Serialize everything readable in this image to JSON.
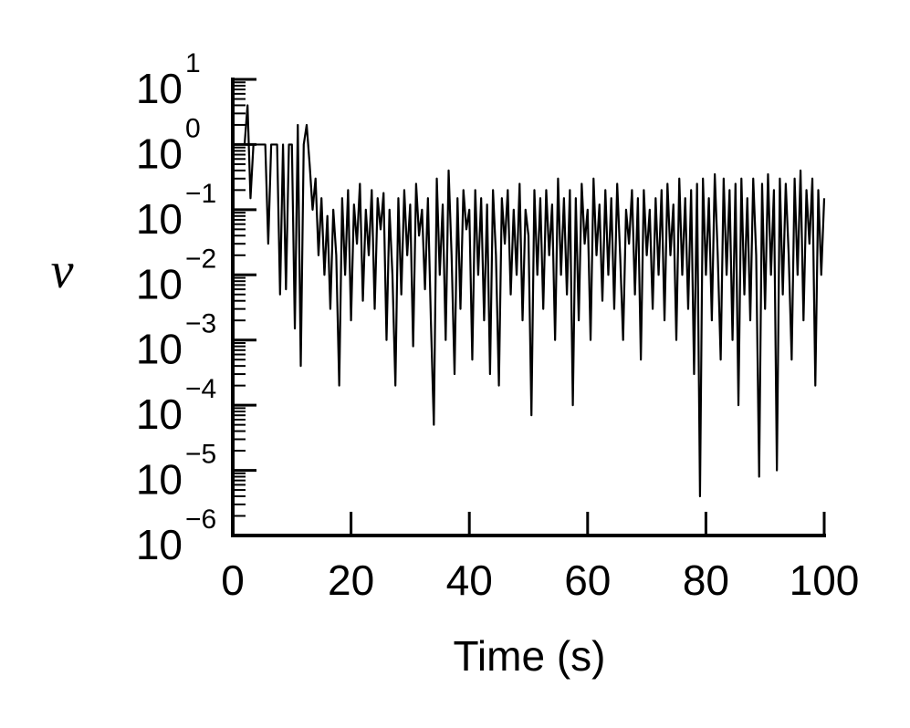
{
  "chart_data": {
    "type": "line",
    "xlabel": "Time (s)",
    "ylabel": "ν",
    "log_y": true,
    "color": "#000000",
    "xlim": [
      0,
      100
    ],
    "xticks": [
      0,
      20,
      40,
      60,
      80,
      100
    ],
    "ylim": [
      1e-06,
      10
    ],
    "yticks": [
      {
        "value": 1e-06,
        "label": "10",
        "exponent": "−6"
      },
      {
        "value": 1e-05,
        "label": "10",
        "exponent": "−5"
      },
      {
        "value": 0.0001,
        "label": "10",
        "exponent": "−4"
      },
      {
        "value": 0.001,
        "label": "10",
        "exponent": "−3"
      },
      {
        "value": 0.01,
        "label": "10",
        "exponent": "−2"
      },
      {
        "value": 0.1,
        "label": "10",
        "exponent": "−1"
      },
      {
        "value": 1,
        "label": "10",
        "exponent": "0"
      },
      {
        "value": 10,
        "label": "10",
        "exponent": "1"
      }
    ],
    "yminorticks": [
      2e-06,
      3e-06,
      4e-06,
      5e-06,
      6e-06,
      7e-06,
      8e-06,
      9e-06,
      2e-05,
      3e-05,
      4e-05,
      5e-05,
      6e-05,
      7e-05,
      8e-05,
      9e-05,
      0.0002,
      0.0003,
      0.0004,
      0.0005,
      0.0006,
      0.0007,
      0.0008,
      0.0009,
      0.002,
      0.003,
      0.004,
      0.005,
      0.006,
      0.007,
      0.008,
      0.009,
      0.02,
      0.03,
      0.04,
      0.05,
      0.06,
      0.07,
      0.08,
      0.09,
      0.2,
      0.3,
      0.4,
      0.5,
      0.6,
      0.7,
      0.8,
      0.9,
      2,
      3,
      4,
      5,
      6,
      7,
      8,
      9
    ],
    "x": [
      0,
      0.5,
      1,
      1.5,
      2,
      2.5,
      3,
      3.5,
      4,
      4.5,
      5,
      5.5,
      6,
      6.5,
      7,
      7.5,
      8,
      8.5,
      9,
      9.5,
      10,
      10.5,
      11,
      11.5,
      12,
      12.5,
      13,
      13.5,
      14,
      14.5,
      15,
      15.5,
      16,
      16.5,
      17,
      17.5,
      18,
      18.5,
      19,
      19.5,
      20,
      20.5,
      21,
      21.5,
      22,
      22.5,
      23,
      23.5,
      24,
      24.5,
      25,
      25.5,
      26,
      26.5,
      27,
      27.5,
      28,
      28.5,
      29,
      29.5,
      30,
      30.5,
      31,
      31.5,
      32,
      32.5,
      33,
      33.5,
      34,
      34.5,
      35,
      35.5,
      36,
      36.5,
      37,
      37.5,
      38,
      38.5,
      39,
      39.5,
      40,
      40.5,
      41,
      41.5,
      42,
      42.5,
      43,
      43.5,
      44,
      44.5,
      45,
      45.5,
      46,
      46.5,
      47,
      47.5,
      48,
      48.5,
      49,
      49.5,
      50,
      50.5,
      51,
      51.5,
      52,
      52.5,
      53,
      53.5,
      54,
      54.5,
      55,
      55.5,
      56,
      56.5,
      57,
      57.5,
      58,
      58.5,
      59,
      59.5,
      60,
      60.5,
      61,
      61.5,
      62,
      62.5,
      63,
      63.5,
      64,
      64.5,
      65,
      65.5,
      66,
      66.5,
      67,
      67.5,
      68,
      68.5,
      69,
      69.5,
      70,
      70.5,
      71,
      71.5,
      72,
      72.5,
      73,
      73.5,
      74,
      74.5,
      75,
      75.5,
      76,
      76.5,
      77,
      77.5,
      78,
      78.5,
      79,
      79.5,
      80,
      80.5,
      81,
      81.5,
      82,
      82.5,
      83,
      83.5,
      84,
      84.5,
      85,
      85.5,
      86,
      86.5,
      87,
      87.5,
      88,
      88.5,
      89,
      89.5,
      90,
      90.5,
      91,
      91.5,
      92,
      92.5,
      93,
      93.5,
      94,
      94.5,
      95,
      95.5,
      96,
      96.5,
      97,
      97.5,
      98,
      98.5,
      99,
      99.5,
      100
    ],
    "values": [
      1,
      1,
      1,
      1,
      1,
      4,
      0.15,
      1,
      1,
      1,
      1,
      1,
      0.03,
      1,
      1,
      1,
      0.005,
      1,
      0.006,
      1,
      1,
      0.0015,
      2,
      0.0004,
      1,
      2,
      0.5,
      0.1,
      0.3,
      0.02,
      0.15,
      0.01,
      0.08,
      0.003,
      0.1,
      0.02,
      0.0002,
      0.15,
      0.01,
      0.2,
      0.002,
      0.12,
      0.03,
      0.25,
      0.004,
      0.1,
      0.02,
      0.2,
      0.003,
      0.15,
      0.05,
      0.18,
      0.001,
      0.1,
      0.01,
      0.0002,
      0.15,
      0.005,
      0.2,
      0.02,
      0.12,
      0.0008,
      0.25,
      0.04,
      0.1,
      0.006,
      0.15,
      0.002,
      5e-05,
      0.3,
      0.01,
      0.12,
      0.001,
      0.4,
      0.02,
      0.0003,
      0.15,
      0.003,
      0.2,
      0.05,
      0.1,
      0.0005,
      0.2,
      0.01,
      0.15,
      0.002,
      0.12,
      0.0003,
      0.2,
      0.02,
      0.0002,
      0.15,
      0.03,
      0.2,
      0.005,
      0.1,
      0.01,
      0.25,
      0.002,
      0.1,
      0.04,
      7e-05,
      0.2,
      0.01,
      0.15,
      0.003,
      0.2,
      0.02,
      0.12,
      0.001,
      0.3,
      0.01,
      0.15,
      0.005,
      0.2,
      0.0001,
      0.15,
      0.002,
      0.25,
      0.03,
      0.1,
      0.001,
      0.3,
      0.02,
      0.12,
      0.004,
      0.2,
      0.01,
      0.15,
      0.003,
      0.25,
      0.02,
      0.001,
      0.1,
      0.03,
      0.2,
      0.005,
      0.15,
      0.0005,
      0.2,
      0.02,
      0.1,
      0.003,
      0.15,
      0.01,
      0.2,
      0.002,
      0.25,
      0.02,
      0.12,
      0.001,
      0.3,
      0.01,
      0.15,
      0.003,
      0.2,
      0.0003,
      0.25,
      4e-06,
      0.3,
      0.01,
      0.15,
      0.002,
      0.35,
      0.02,
      0.0005,
      0.3,
      0.01,
      0.2,
      0.001,
      0.25,
      0.0001,
      0.3,
      0.005,
      0.15,
      0.002,
      0.3,
      0.02,
      8e-06,
      0.25,
      0.003,
      0.35,
      0.01,
      0.2,
      1e-05,
      0.3,
      0.005,
      0.25,
      0.02,
      0.0005,
      0.3,
      0.01,
      0.4,
      0.002,
      0.2,
      0.03,
      0.3,
      0.0002,
      0.2,
      0.01,
      0.15
    ]
  }
}
